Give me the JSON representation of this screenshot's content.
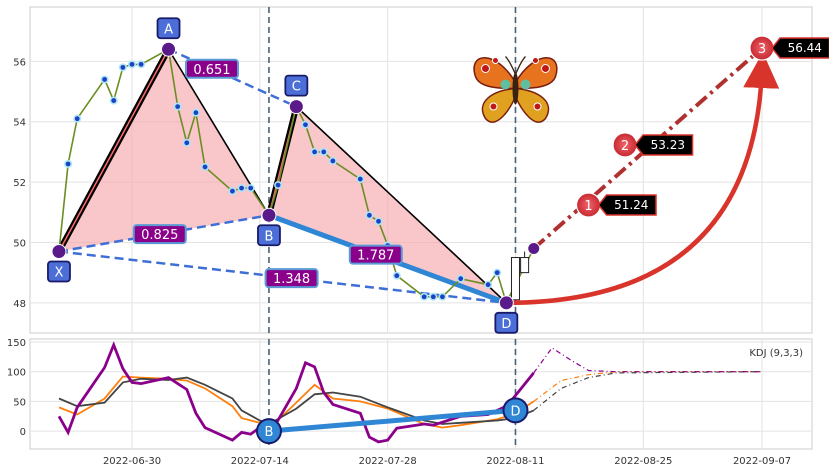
{
  "chart_data": [
    {
      "type": "line",
      "panel": "price",
      "x_dates": [
        "2022-06-30",
        "2022-07-14",
        "2022-07-28",
        "2022-08-11",
        "2022-08-25",
        "2022-09-07"
      ],
      "ylim": [
        47.0,
        57.8
      ],
      "yticks": [
        48,
        50,
        52,
        54,
        56
      ],
      "grid": true,
      "price_series": [
        {
          "date": "2022-06-22",
          "value": 49.7
        },
        {
          "date": "2022-06-23",
          "value": 52.6
        },
        {
          "date": "2022-06-24",
          "value": 54.1
        },
        {
          "date": "2022-06-27",
          "value": 55.4
        },
        {
          "date": "2022-06-28",
          "value": 54.7
        },
        {
          "date": "2022-06-29",
          "value": 55.8
        },
        {
          "date": "2022-06-30",
          "value": 55.9
        },
        {
          "date": "2022-07-01",
          "value": 55.9
        },
        {
          "date": "2022-07-04",
          "value": 56.4
        },
        {
          "date": "2022-07-05",
          "value": 54.5
        },
        {
          "date": "2022-07-06",
          "value": 53.3
        },
        {
          "date": "2022-07-07",
          "value": 54.3
        },
        {
          "date": "2022-07-08",
          "value": 52.5
        },
        {
          "date": "2022-07-11",
          "value": 51.7
        },
        {
          "date": "2022-07-12",
          "value": 51.8
        },
        {
          "date": "2022-07-13",
          "value": 51.8
        },
        {
          "date": "2022-07-15",
          "value": 50.9
        },
        {
          "date": "2022-07-16",
          "value": 51.9
        },
        {
          "date": "2022-07-18",
          "value": 54.5
        },
        {
          "date": "2022-07-19",
          "value": 53.9
        },
        {
          "date": "2022-07-20",
          "value": 53.0
        },
        {
          "date": "2022-07-21",
          "value": 53.0
        },
        {
          "date": "2022-07-22",
          "value": 52.7
        },
        {
          "date": "2022-07-25",
          "value": 52.1
        },
        {
          "date": "2022-07-26",
          "value": 50.9
        },
        {
          "date": "2022-07-27",
          "value": 50.7
        },
        {
          "date": "2022-07-28",
          "value": 49.9
        },
        {
          "date": "2022-07-29",
          "value": 48.9
        },
        {
          "date": "2022-08-01",
          "value": 48.2
        },
        {
          "date": "2022-08-02",
          "value": 48.2
        },
        {
          "date": "2022-08-03",
          "value": 48.2
        },
        {
          "date": "2022-08-05",
          "value": 48.8
        },
        {
          "date": "2022-08-08",
          "value": 48.6
        },
        {
          "date": "2022-08-09",
          "value": 49.0
        },
        {
          "date": "2022-08-10",
          "value": 48.0
        },
        {
          "date": "2022-08-13",
          "value": 49.8
        }
      ],
      "candles": [
        {
          "date": "2022-08-11",
          "open": 48.1,
          "close": 49.5,
          "high": 49.5,
          "low": 48.0
        },
        {
          "date": "2022-08-12",
          "open": 49.0,
          "close": 49.5,
          "high": 49.7,
          "low": 49.0
        }
      ],
      "pattern_points": [
        {
          "label": "X",
          "date": "2022-06-22",
          "value": 49.7
        },
        {
          "label": "A",
          "date": "2022-07-04",
          "value": 56.4
        },
        {
          "label": "B",
          "date": "2022-07-15",
          "value": 50.9
        },
        {
          "label": "C",
          "date": "2022-07-18",
          "value": 54.5
        },
        {
          "label": "D",
          "date": "2022-08-10",
          "value": 48.0
        }
      ],
      "ratios": [
        {
          "text": "0.651",
          "from": "A",
          "to": "C",
          "pos": 0.34
        },
        {
          "text": "0.825",
          "from": "X",
          "to": "B",
          "pos": 0.48
        },
        {
          "text": "1.348",
          "from": "X",
          "to": "D",
          "pos": 0.52
        },
        {
          "text": "1.787",
          "from": "B",
          "to": "D",
          "pos": 0.45
        }
      ],
      "targets": [
        {
          "label": "1",
          "value": 51.24,
          "date": "2022-08-19"
        },
        {
          "label": "2",
          "value": 53.23,
          "date": "2022-08-23"
        },
        {
          "label": "3",
          "value": 56.44,
          "date": "2022-09-07"
        }
      ],
      "projection_start": {
        "date": "2022-08-13",
        "value": 49.8
      },
      "vlines": [
        "2022-07-15",
        "2022-08-11"
      ],
      "butterfly": {
        "icon": "butterfly-icon",
        "date": "2022-08-11",
        "value": 55.1
      }
    },
    {
      "type": "line",
      "panel": "indicator",
      "legend": "KDJ (9,3,3)",
      "ylim": [
        -30,
        155
      ],
      "yticks": [
        0,
        50,
        100,
        150
      ],
      "x_dates": [
        "2022-06-30",
        "2022-07-14",
        "2022-07-28",
        "2022-08-11",
        "2022-08-25",
        "2022-09-07"
      ],
      "series": [
        {
          "name": "K",
          "color": "#ff7f0e",
          "points": [
            [
              "2022-06-22",
              40
            ],
            [
              "2022-06-24",
              28
            ],
            [
              "2022-06-27",
              55
            ],
            [
              "2022-06-29",
              92
            ],
            [
              "2022-07-01",
              90
            ],
            [
              "2022-07-04",
              88
            ],
            [
              "2022-07-06",
              85
            ],
            [
              "2022-07-08",
              72
            ],
            [
              "2022-07-11",
              42
            ],
            [
              "2022-07-12",
              22
            ],
            [
              "2022-07-14",
              14
            ],
            [
              "2022-07-15",
              4
            ],
            [
              "2022-07-18",
              48
            ],
            [
              "2022-07-20",
              78
            ],
            [
              "2022-07-22",
              55
            ],
            [
              "2022-07-25",
              50
            ],
            [
              "2022-07-28",
              38
            ],
            [
              "2022-08-01",
              12
            ],
            [
              "2022-08-03",
              6
            ],
            [
              "2022-08-05",
              10
            ],
            [
              "2022-08-09",
              20
            ],
            [
              "2022-08-11",
              30
            ],
            [
              "2022-08-13",
              50
            ]
          ]
        },
        {
          "name": "D",
          "color": "#444444",
          "points": [
            [
              "2022-06-22",
              55
            ],
            [
              "2022-06-24",
              42
            ],
            [
              "2022-06-27",
              48
            ],
            [
              "2022-06-29",
              82
            ],
            [
              "2022-07-01",
              88
            ],
            [
              "2022-07-04",
              86
            ],
            [
              "2022-07-06",
              90
            ],
            [
              "2022-07-08",
              78
            ],
            [
              "2022-07-11",
              55
            ],
            [
              "2022-07-12",
              35
            ],
            [
              "2022-07-14",
              18
            ],
            [
              "2022-07-15",
              12
            ],
            [
              "2022-07-18",
              38
            ],
            [
              "2022-07-20",
              62
            ],
            [
              "2022-07-22",
              65
            ],
            [
              "2022-07-25",
              58
            ],
            [
              "2022-07-28",
              40
            ],
            [
              "2022-08-01",
              18
            ],
            [
              "2022-08-03",
              12
            ],
            [
              "2022-08-05",
              14
            ],
            [
              "2022-08-09",
              18
            ],
            [
              "2022-08-11",
              22
            ],
            [
              "2022-08-13",
              35
            ]
          ]
        },
        {
          "name": "J",
          "color": "#8b008b",
          "points": [
            [
              "2022-06-22",
              25
            ],
            [
              "2022-06-23",
              -2
            ],
            [
              "2022-06-24",
              40
            ],
            [
              "2022-06-27",
              107
            ],
            [
              "2022-06-28",
              145
            ],
            [
              "2022-06-29",
              105
            ],
            [
              "2022-06-30",
              82
            ],
            [
              "2022-07-01",
              80
            ],
            [
              "2022-07-04",
              90
            ],
            [
              "2022-07-06",
              70
            ],
            [
              "2022-07-07",
              30
            ],
            [
              "2022-07-08",
              6
            ],
            [
              "2022-07-11",
              -15
            ],
            [
              "2022-07-12",
              -2
            ],
            [
              "2022-07-13",
              -5
            ],
            [
              "2022-07-14",
              6
            ],
            [
              "2022-07-15",
              -8
            ],
            [
              "2022-07-18",
              72
            ],
            [
              "2022-07-19",
              115
            ],
            [
              "2022-07-20",
              108
            ],
            [
              "2022-07-21",
              65
            ],
            [
              "2022-07-22",
              45
            ],
            [
              "2022-07-25",
              30
            ],
            [
              "2022-07-26",
              -10
            ],
            [
              "2022-07-27",
              -18
            ],
            [
              "2022-07-28",
              -15
            ],
            [
              "2022-07-29",
              5
            ],
            [
              "2022-08-01",
              12
            ],
            [
              "2022-08-02",
              10
            ],
            [
              "2022-08-03",
              15
            ],
            [
              "2022-08-05",
              25
            ],
            [
              "2022-08-08",
              28
            ],
            [
              "2022-08-09",
              35
            ],
            [
              "2022-08-10",
              42
            ],
            [
              "2022-08-11",
              60
            ],
            [
              "2022-08-13",
              98
            ]
          ]
        }
      ],
      "projections": [
        {
          "name": "K",
          "color": "#ff7f0e",
          "points": [
            [
              "2022-08-13",
              50
            ],
            [
              "2022-08-16",
              85
            ],
            [
              "2022-08-19",
              95
            ],
            [
              "2022-08-22",
              100
            ],
            [
              "2022-09-07",
              100
            ]
          ]
        },
        {
          "name": "D",
          "color": "#444444",
          "points": [
            [
              "2022-08-13",
              35
            ],
            [
              "2022-08-16",
              72
            ],
            [
              "2022-08-19",
              90
            ],
            [
              "2022-08-22",
              98
            ],
            [
              "2022-09-07",
              100
            ]
          ]
        },
        {
          "name": "J",
          "color": "#8b008b",
          "points": [
            [
              "2022-08-13",
              98
            ],
            [
              "2022-08-15",
              140
            ],
            [
              "2022-08-17",
              120
            ],
            [
              "2022-08-19",
              102
            ],
            [
              "2022-08-22",
              100
            ],
            [
              "2022-09-07",
              100
            ]
          ]
        }
      ],
      "pattern_points": [
        {
          "label": "B",
          "date": "2022-07-15",
          "value": 0
        },
        {
          "label": "D",
          "date": "2022-08-11",
          "value": 35
        }
      ]
    }
  ]
}
